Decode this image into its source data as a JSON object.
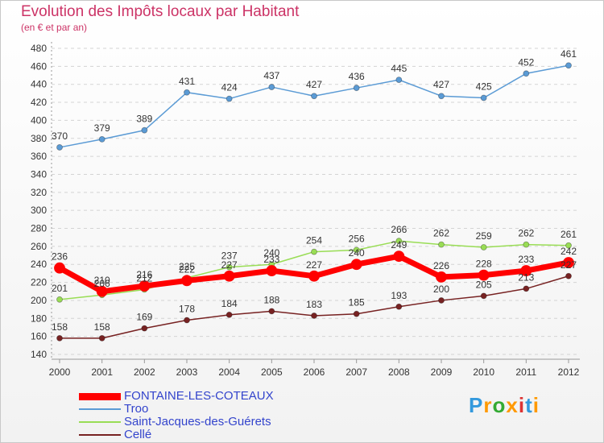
{
  "title": "Evolution des Impôts locaux par Habitant",
  "subtitle": "(en € et par an)",
  "chart_data": {
    "type": "line",
    "x": [
      "2000",
      "2001",
      "2002",
      "2003",
      "2004",
      "2005",
      "2006",
      "2007",
      "2008",
      "2009",
      "2010",
      "2011",
      "2012"
    ],
    "ylim": [
      140,
      480
    ],
    "yticks": [
      140,
      160,
      180,
      200,
      220,
      240,
      260,
      280,
      300,
      320,
      340,
      360,
      380,
      400,
      420,
      440,
      460,
      480
    ],
    "grid": "horizontal dashed",
    "legend_position": "bottom-left",
    "series": [
      {
        "name": "FONTAINE-LES-COTEAUX",
        "color": "#ff0000",
        "width": 7,
        "values": [
          236,
          210,
          216,
          222,
          227,
          233,
          227,
          240,
          249,
          226,
          228,
          233,
          242
        ]
      },
      {
        "name": "Troo",
        "color": "#5b9bd5",
        "width": 1.5,
        "values": [
          370,
          379,
          389,
          431,
          424,
          437,
          427,
          436,
          445,
          427,
          425,
          452,
          461
        ]
      },
      {
        "name": "Saint-Jacques-des-Guérets",
        "color": "#99dd55",
        "width": 1.5,
        "values": [
          201,
          206,
          212,
          225,
          237,
          240,
          254,
          256,
          266,
          262,
          259,
          262,
          261
        ]
      },
      {
        "name": "Cellé",
        "color": "#772222",
        "width": 1.5,
        "values": [
          158,
          158,
          169,
          178,
          184,
          188,
          183,
          185,
          193,
          200,
          205,
          213,
          227
        ]
      }
    ]
  },
  "logo": {
    "text": "Proxiti",
    "colors": [
      "#3399dd",
      "#ff9900",
      "#33aa33",
      "#ff9900",
      "#dd3333",
      "#3399dd",
      "#ff9900"
    ]
  }
}
